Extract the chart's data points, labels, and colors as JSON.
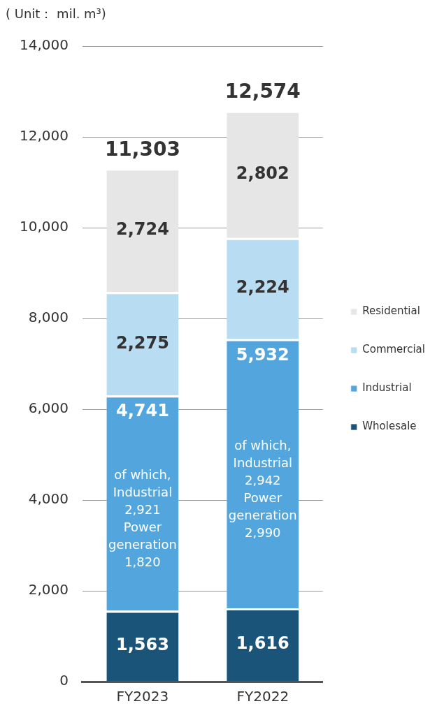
{
  "chart_data": {
    "type": "bar",
    "ylabel": "( Unit： mil. m³)",
    "categories": [
      "FY2023",
      "FY2022"
    ],
    "stacked": true,
    "series": [
      {
        "name": "Wholesale",
        "color": "#1b5479",
        "values": [
          1563,
          1616
        ],
        "value_labels": [
          "1,563",
          "1,616"
        ]
      },
      {
        "name": "Industrial",
        "color": "#52a6dd",
        "values": [
          4741,
          5932
        ],
        "value_labels": [
          "4,741",
          "5,932"
        ]
      },
      {
        "name": "Commercial",
        "color": "#b8dcf2",
        "values": [
          2275,
          2224
        ],
        "value_labels": [
          "2,275",
          "2,224"
        ]
      },
      {
        "name": "Residential",
        "color": "#e6e6e6",
        "values": [
          2724,
          2802
        ],
        "value_labels": [
          "2,724",
          "2,802"
        ]
      }
    ],
    "ylim": [
      0,
      14000
    ],
    "yticks": [
      0,
      {
        "value": 2000,
        "label": "2,000"
      },
      {
        "value": 4000,
        "label": "4,000"
      },
      {
        "value": 6000,
        "label": "6,000"
      },
      {
        "value": 8000,
        "label": "8,000"
      },
      {
        "value": 10000,
        "label": "10,000"
      },
      {
        "value": 12000,
        "label": "12,000"
      },
      {
        "value": 14000,
        "label": "14,000"
      }
    ],
    "grid": "y",
    "legend": "right",
    "totals": [
      "11,303",
      "12,574"
    ],
    "annotations": [
      "of which,\nIndustrial\n2,921\nPower\ngeneration\n1,820",
      "of which,\nIndustrial\n2,942\nPower\ngeneration\n2,990"
    ]
  }
}
